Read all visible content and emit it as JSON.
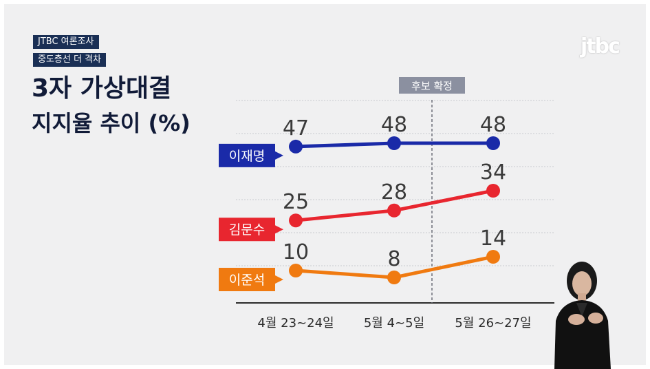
{
  "header": {
    "tag1": "JTBC 여론조사",
    "tag2": "중도층선 더 격차",
    "title_line1": "3자 가상대결",
    "title_line2": "지지율 추이 (%)",
    "logo": "jtbc"
  },
  "colors": {
    "navy": "#1a2f55",
    "blue": "#1a2aa8",
    "red": "#e8262f",
    "orange": "#f07a10",
    "marker": "#8b90a0"
  },
  "chart_data": {
    "type": "line",
    "title": "3자 가상대결 지지율 추이 (%)",
    "categories": [
      "4월 23~24일",
      "5월 4~5일",
      "5월 26~27일"
    ],
    "ylim": [
      0,
      55
    ],
    "grid": true,
    "marker": {
      "after_index": 1,
      "label": "후보 확정"
    },
    "series": [
      {
        "name": "이재명",
        "values": [
          47,
          48,
          48
        ],
        "color": "#1a2aa8"
      },
      {
        "name": "김문수",
        "values": [
          25,
          28,
          34
        ],
        "color": "#e8262f"
      },
      {
        "name": "이준석",
        "values": [
          10,
          8,
          14
        ],
        "color": "#f07a10"
      }
    ]
  }
}
